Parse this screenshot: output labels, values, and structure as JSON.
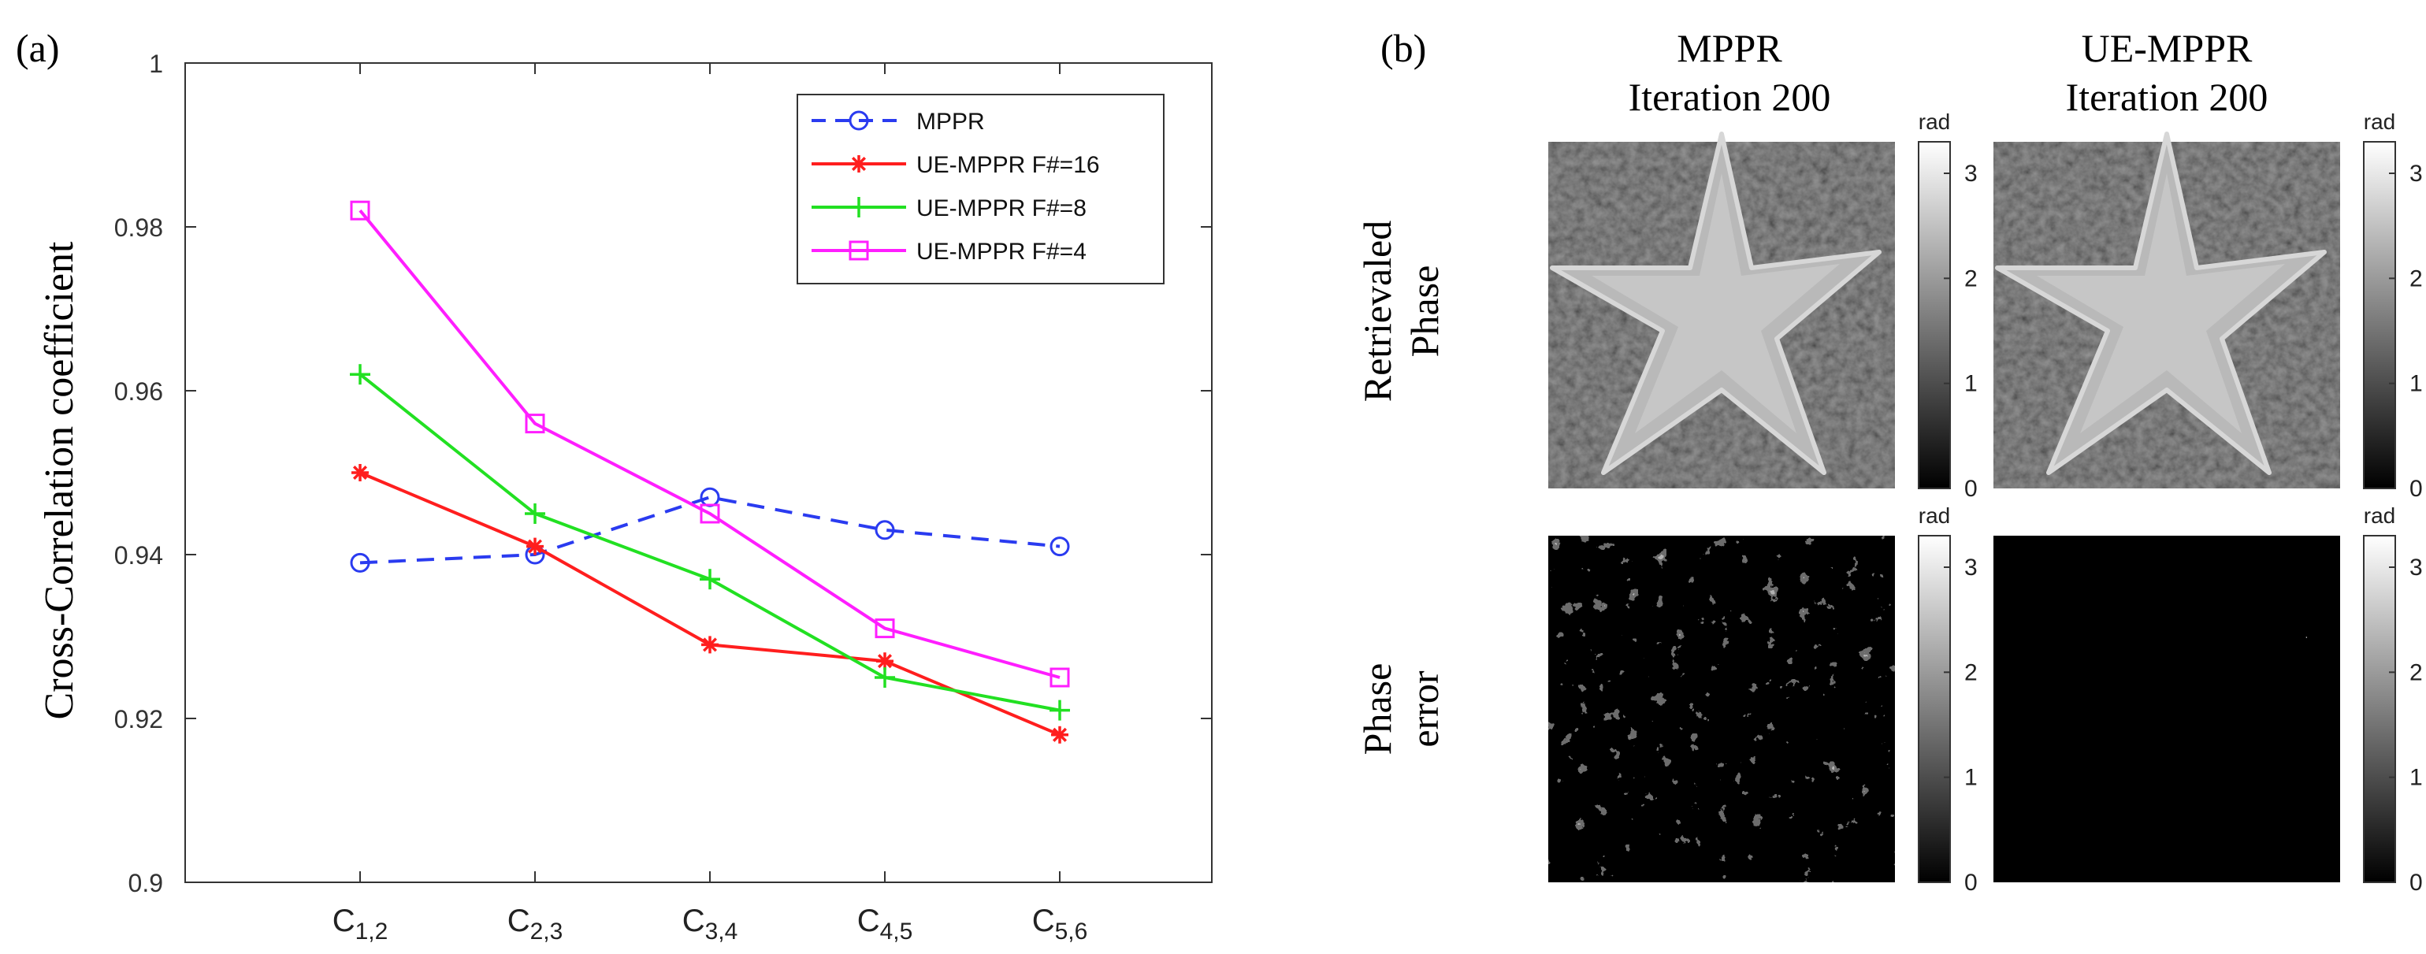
{
  "figure": {
    "panel_a_label": "(a)",
    "panel_b_label": "(b)"
  },
  "chart_data": {
    "type": "line",
    "ylabel": "Cross-Correlation coefficient",
    "xlabel": "",
    "ylim": [
      0.9,
      1.0
    ],
    "yticks": [
      "0.9",
      "0.92",
      "0.94",
      "0.96",
      "0.98",
      "1"
    ],
    "yticks_values": [
      0.9,
      0.92,
      0.94,
      0.96,
      0.98,
      1.0
    ],
    "categories": [
      {
        "base": "C",
        "sub": "1,2"
      },
      {
        "base": "C",
        "sub": "2,3"
      },
      {
        "base": "C",
        "sub": "3,4"
      },
      {
        "base": "C",
        "sub": "4,5"
      },
      {
        "base": "C",
        "sub": "5,6"
      }
    ],
    "grid": false,
    "legend_position": "top-right",
    "series": [
      {
        "name": "MPPR",
        "values": [
          0.939,
          0.94,
          0.947,
          0.943,
          0.941
        ],
        "color": "#2a3bf0",
        "dash": "dashed",
        "marker": "circle"
      },
      {
        "name": "UE-MPPR  F#=16",
        "values": [
          0.95,
          0.941,
          0.929,
          0.927,
          0.918
        ],
        "color": "#ff1e1e",
        "dash": "solid",
        "marker": "asterisk"
      },
      {
        "name": "UE-MPPR  F#=8",
        "values": [
          0.962,
          0.945,
          0.937,
          0.925,
          0.921
        ],
        "color": "#22e022",
        "dash": "solid",
        "marker": "plus"
      },
      {
        "name": "UE-MPPR  F#=4",
        "values": [
          0.982,
          0.956,
          0.945,
          0.931,
          0.925
        ],
        "color": "#ff1eff",
        "dash": "solid",
        "marker": "square"
      }
    ]
  },
  "panel_b": {
    "col1_title_line1": "MPPR",
    "col1_title_line2": "Iteration 200",
    "col2_title_line1": "UE-MPPR",
    "col2_title_line2": "Iteration 200",
    "row1_label_line1": "Retrievaled",
    "row1_label_line2": "Phase",
    "row2_label_line1": "Phase",
    "row2_label_line2": "error",
    "colorbar_unit": "rad",
    "colorbar_ticks": [
      "0",
      "1",
      "2",
      "3"
    ],
    "colorbar_values": [
      0,
      1,
      2,
      3
    ],
    "colorbar_max": 3.3
  }
}
